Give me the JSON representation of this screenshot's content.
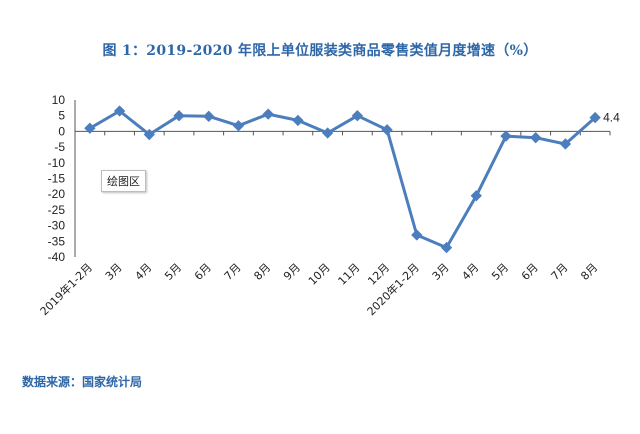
{
  "chart_data": {
    "type": "line",
    "title": "图 1：2019-2020 年限上单位服装类商品零售类值月度增速（%）",
    "categories": [
      "2019年1-2月",
      "3月",
      "4月",
      "5月",
      "6月",
      "7月",
      "8月",
      "9月",
      "10月",
      "11月",
      "12月",
      "2020年1-2月",
      "3月",
      "4月",
      "5月",
      "6月",
      "7月",
      "8月"
    ],
    "values": [
      1,
      6.5,
      -1,
      5,
      4.8,
      1.8,
      5.5,
      3.5,
      -0.5,
      5,
      0.5,
      -33,
      -37,
      -20.5,
      -1.5,
      -2,
      -4,
      4.4
    ],
    "yticks": [
      10,
      5,
      0,
      -5,
      -10,
      -15,
      -20,
      -25,
      -30,
      -35,
      -40
    ],
    "ylim": [
      -40,
      10
    ],
    "data_labels": [
      {
        "index": 17,
        "text": "4.4"
      }
    ],
    "color": "#4C7EBD",
    "grid": false
  },
  "tooltip": "绘图区",
  "source": "数据来源：国家统计局"
}
